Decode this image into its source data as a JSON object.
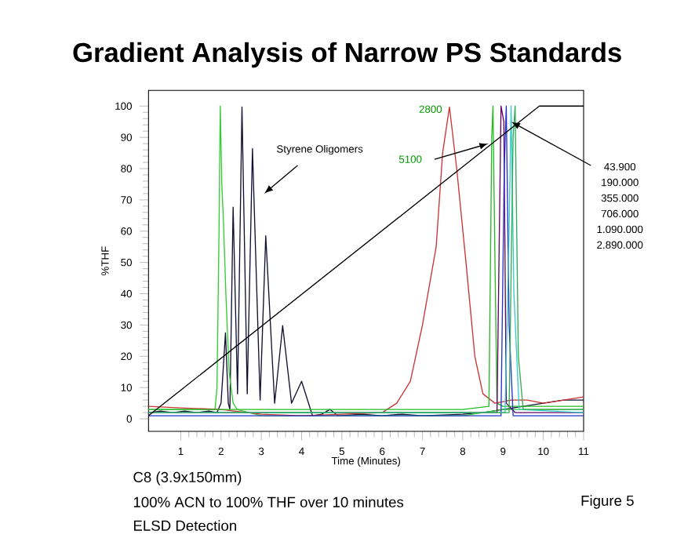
{
  "chart_data": {
    "type": "line",
    "title": "Gradient Analysis of Narrow PS Standards",
    "xlabel": "Time (Minutes)",
    "ylabel": "%THF",
    "xlim": [
      0.2,
      11
    ],
    "ylim": [
      -4,
      105
    ],
    "xticks": [
      1,
      2,
      3,
      4,
      5,
      6,
      7,
      8,
      9,
      10,
      11
    ],
    "yticks": [
      0,
      10,
      20,
      30,
      40,
      50,
      60,
      70,
      80,
      90,
      100
    ],
    "grid": false,
    "line_style": "solid",
    "marker": "none",
    "series": [
      {
        "color": "#101030",
        "x": [
          0.2,
          0.5,
          0.8,
          1.1,
          1.4,
          1.7,
          1.9,
          2.0,
          2.05,
          2.11,
          2.18,
          2.22,
          2.3,
          2.41,
          2.52,
          2.65,
          2.78,
          2.97,
          3.11,
          3.33,
          3.53,
          3.75,
          4.0,
          4.27,
          4.5,
          4.7,
          4.9,
          5.5,
          6,
          6.5,
          7,
          8,
          8.5,
          9,
          9.5,
          10,
          10.5,
          11
        ],
        "values": [
          2,
          2.5,
          2,
          2.5,
          2,
          2.5,
          2,
          5,
          15,
          27.5,
          5,
          3,
          67.7,
          8,
          99.7,
          8,
          86.4,
          6,
          58.5,
          5,
          29.8,
          5,
          12,
          1,
          1.5,
          3,
          1,
          1.5,
          1,
          1.5,
          1,
          1.5,
          2,
          3,
          4,
          5,
          6,
          6
        ]
      },
      {
        "color": "#33cc33",
        "x": [
          0.2,
          1,
          1.85,
          1.9,
          1.95,
          1.98,
          2.02,
          2.06,
          2.12,
          2.2,
          2.3,
          2.4,
          3,
          5,
          8,
          8.5,
          9,
          11
        ],
        "values": [
          3,
          3,
          3,
          10,
          60,
          100,
          75,
          63,
          40,
          15,
          5,
          3,
          1,
          1,
          1,
          2,
          3,
          3
        ]
      },
      {
        "color": "#cc3333",
        "x": [
          0.2,
          1,
          2,
          3,
          4,
          5,
          6,
          6.36,
          6.7,
          7.0,
          7.34,
          7.5,
          7.67,
          7.85,
          8.08,
          8.3,
          8.5,
          8.8,
          9.2,
          9.6,
          10,
          10.5,
          11
        ],
        "values": [
          4,
          3.5,
          3,
          1.5,
          1,
          1.5,
          2,
          5,
          12,
          30,
          55,
          85,
          99.7,
          80,
          50,
          20,
          8,
          5,
          6,
          6,
          5,
          6,
          7
        ]
      },
      {
        "color": "#22bb22",
        "x": [
          0.2,
          8,
          8.65,
          8.72,
          8.75,
          8.8,
          8.85,
          9,
          11
        ],
        "values": [
          3,
          3,
          4,
          90,
          100,
          50,
          5,
          4,
          4
        ]
      },
      {
        "color": "#660066",
        "x": [
          0.2,
          8.85,
          8.95,
          9.02,
          9.08,
          9.3,
          11
        ],
        "values": [
          2,
          2,
          100,
          95,
          5,
          2,
          2
        ]
      },
      {
        "color": "#2233cc",
        "x": [
          0.2,
          8.95,
          9.03,
          9.08,
          9.15,
          9.25,
          11
        ],
        "values": [
          1,
          1,
          80,
          100,
          30,
          1,
          1
        ]
      },
      {
        "color": "#33cccc",
        "x": [
          0.2,
          9.05,
          9.15,
          9.2,
          9.27,
          9.4,
          11
        ],
        "values": [
          2,
          2,
          60,
          100,
          40,
          3,
          2
        ]
      },
      {
        "color": "#33aa55",
        "x": [
          0.2,
          9.15,
          9.25,
          9.3,
          9.38,
          9.5,
          11
        ],
        "values": [
          2,
          2,
          90,
          100,
          20,
          3,
          3
        ]
      },
      {
        "color": "#000000",
        "x": [
          0.2,
          9.9,
          11
        ],
        "values": [
          1,
          100,
          100
        ]
      }
    ],
    "annotations": [
      "Styrene Oligomers",
      "2800",
      {
        "text": "5100",
        "x": 8.64,
        "y": 88
      },
      {
        "text": "43.900",
        "x": 9.2,
        "y": 95
      },
      "190.000",
      "355.000",
      "706.000",
      "1.090.000",
      "2.890.000",
      "C8 (3.9x150mm)",
      "100% ACN to 100% THF over 10 minutes",
      "ELSD Detection",
      "Figure 5"
    ]
  }
}
